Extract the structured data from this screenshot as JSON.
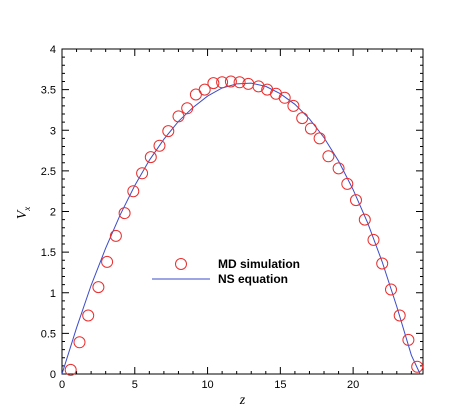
{
  "chart_data": {
    "type": "scatter",
    "xlabel": "z",
    "ylabel": "V",
    "ylabel_subscript": "x",
    "xlim": [
      0,
      24.8
    ],
    "ylim": [
      0,
      4
    ],
    "x_ticks": [
      0,
      5,
      10,
      15,
      20
    ],
    "y_ticks": [
      0,
      0.5,
      1,
      1.5,
      2,
      2.5,
      3,
      3.5,
      4
    ],
    "legend_placement": "center-left",
    "grid": false,
    "series": [
      {
        "name": "MD simulation",
        "kind": "markers",
        "marker": "open-circle",
        "color": "#e8302f",
        "x": [
          0.6,
          1.2,
          1.8,
          2.5,
          3.1,
          3.7,
          4.3,
          4.9,
          5.5,
          6.1,
          6.7,
          7.3,
          8.0,
          8.6,
          9.2,
          9.8,
          10.4,
          11.0,
          11.6,
          12.2,
          12.8,
          13.5,
          14.1,
          14.7,
          15.3,
          15.9,
          16.5,
          17.1,
          17.7,
          18.3,
          19.0,
          19.6,
          20.2,
          20.8,
          21.4,
          22.0,
          22.6,
          23.2,
          23.8,
          24.4
        ],
        "y": [
          0.05,
          0.39,
          0.72,
          1.07,
          1.38,
          1.7,
          1.98,
          2.25,
          2.47,
          2.67,
          2.81,
          2.99,
          3.17,
          3.27,
          3.44,
          3.5,
          3.58,
          3.59,
          3.6,
          3.59,
          3.57,
          3.54,
          3.5,
          3.45,
          3.4,
          3.3,
          3.15,
          3.02,
          2.9,
          2.68,
          2.53,
          2.34,
          2.14,
          1.9,
          1.65,
          1.36,
          1.04,
          0.72,
          0.42,
          0.09
        ]
      },
      {
        "name": "NS equation",
        "kind": "line",
        "color": "#3b4cc9",
        "x": [
          0,
          1,
          2,
          3,
          4,
          5,
          6,
          7,
          8,
          9,
          10,
          11,
          12,
          13,
          14,
          15,
          16,
          17,
          18,
          19,
          20,
          21,
          22,
          23,
          24,
          24.6
        ],
        "y": [
          0.0,
          0.57,
          1.09,
          1.55,
          1.96,
          2.32,
          2.63,
          2.89,
          3.11,
          3.28,
          3.42,
          3.52,
          3.57,
          3.58,
          3.54,
          3.45,
          3.32,
          3.14,
          2.91,
          2.62,
          2.27,
          1.86,
          1.38,
          0.83,
          0.23,
          0.0
        ]
      }
    ]
  }
}
